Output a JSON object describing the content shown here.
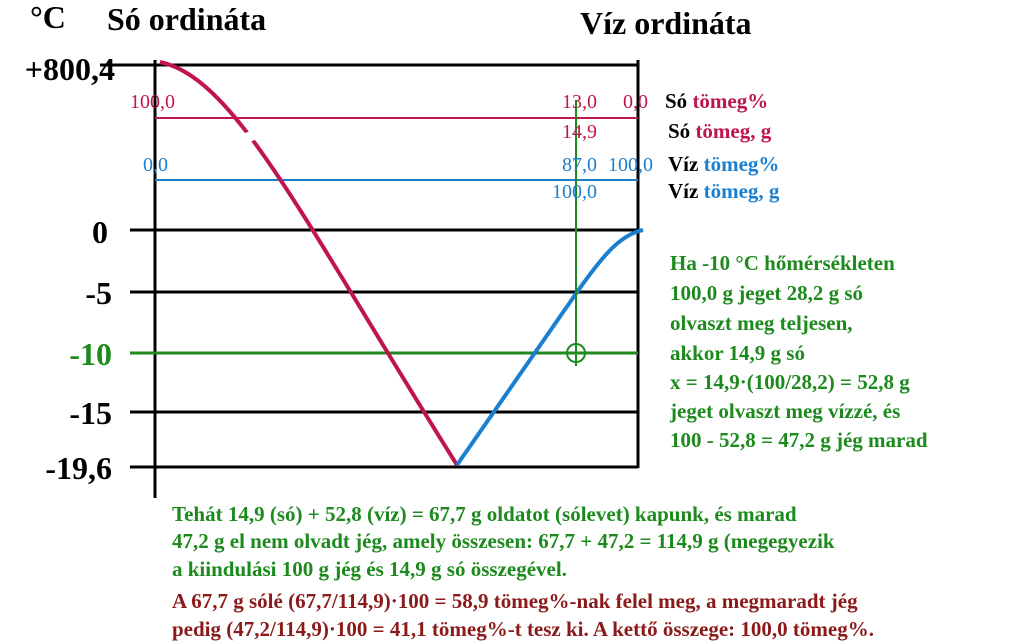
{
  "header": {
    "unit": "°C",
    "left_title": "Só ordináta",
    "right_title": "Víz ordináta"
  },
  "y_labels": [
    "+800,4",
    "0",
    "-5",
    "-10",
    "-15",
    "-19,6"
  ],
  "scale_labels": {
    "salt_pct_left": "100,0",
    "salt_pct_mid": "13,0",
    "salt_pct_right": "0,0",
    "salt_mass": "14,9",
    "water_pct_left": "0,0",
    "water_pct_mid": "87,0",
    "water_pct_right": "100,0",
    "water_mass": "100,0"
  },
  "legend": [
    {
      "word": "Só",
      "term": "tömeg%"
    },
    {
      "word": "Só",
      "term": "tömeg, g"
    },
    {
      "word": "Víz",
      "term": "tömeg%"
    },
    {
      "word": "Víz",
      "term": "tömeg, g"
    }
  ],
  "explanation": [
    "Ha -10 °C hőmérsékleten",
    "100,0 g jeget 28,2 g só",
    "olvaszt meg teljesen,",
    "akkor 14,9 g só",
    "x = 14,9·(100/28,2) = 52,8 g",
    "jeget olvaszt meg vízzé, és",
    "100 - 52,8 = 47,2 g jég marad"
  ],
  "summary": [
    "Tehát 14,9 (só) + 52,8 (víz) = 67,7 g oldatot (sólevet) kapunk, és marad",
    "47,2 g el nem olvadt jég, amely összesen: 67,7 + 47,2 = 114,9 g (megegyezik",
    "a kiindulási 100 g jég és 14,9 g só összegével.",
    "A 67,7 g sólé (67,7/114,9)·100 = 58,9 tömeg%-nak felel meg, a megmaradt jég",
    "pedig (47,2/114,9)·100 = 41,1 tömeg%-t tesz ki. A kettő összege: 100,0 tömeg%."
  ]
}
